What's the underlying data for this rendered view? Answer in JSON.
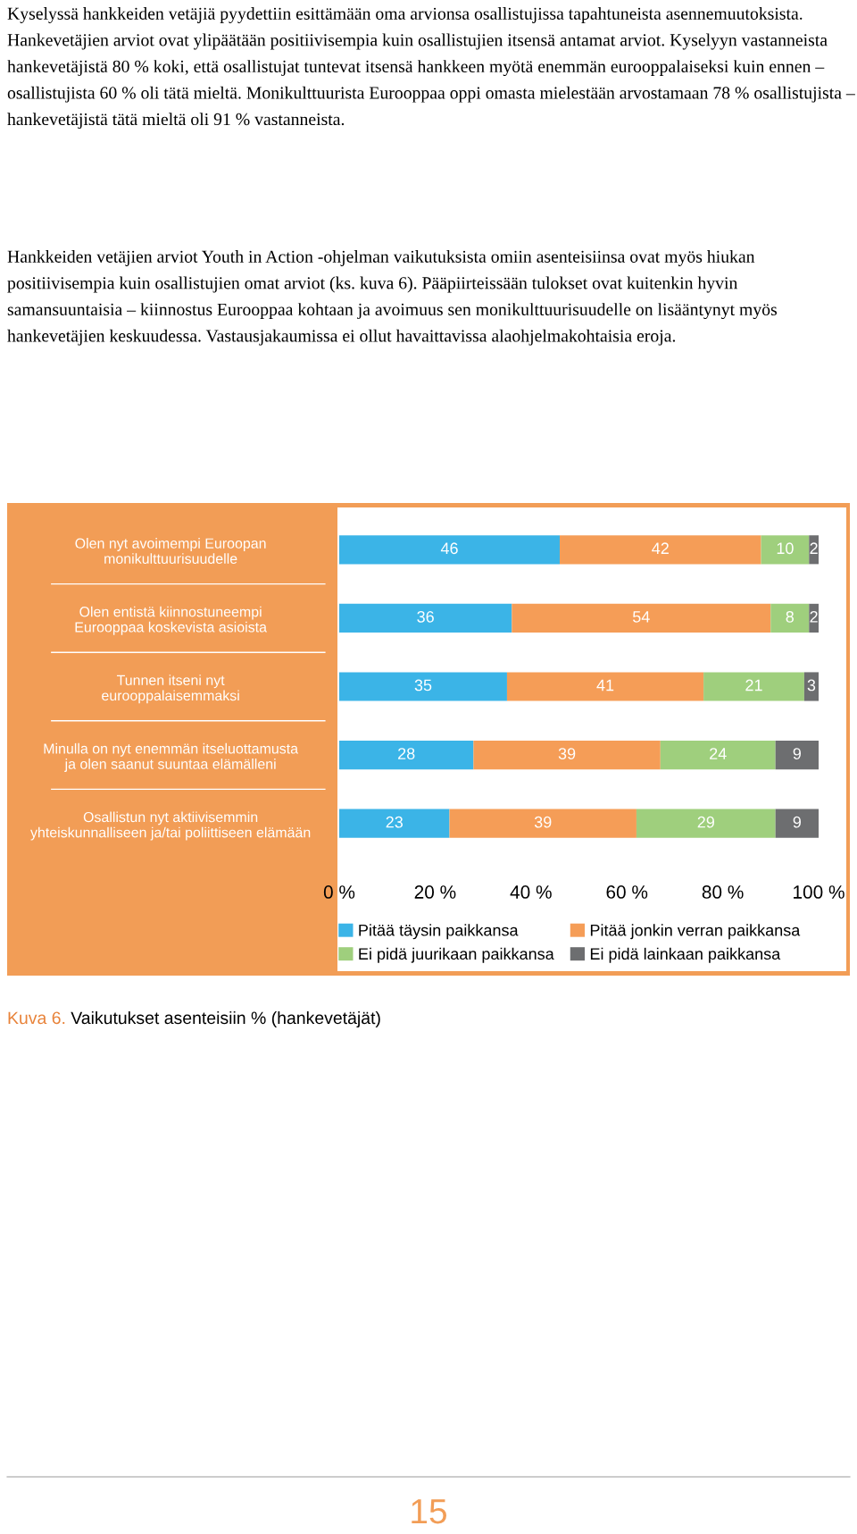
{
  "chart_data": {
    "type": "bar",
    "orientation": "horizontal",
    "stacked": true,
    "categories": [
      "Olen nyt avoimempi Euroopan\nmonikulttuurisuudelle",
      "Olen entistä kiinnostuneempi\nEurooppaa koskevista asioista",
      "Tunnen itseni nyt\neurooppalaisemmaksi",
      "Minulla on nyt enemmän itseluottamusta\nja olen saanut suuntaa elämälleni",
      "Osallistun nyt aktiivisemmin\nyhteiskunnalliseen ja/tai poliittiseen elämään"
    ],
    "series": [
      {
        "name": "Pitää täysin paikkansa",
        "color": "#3bb4e7",
        "values": [
          46,
          36,
          35,
          28,
          23
        ]
      },
      {
        "name": "Pitää jonkin verran paikkansa",
        "color": "#f59d57",
        "values": [
          42,
          54,
          41,
          39,
          39
        ]
      },
      {
        "name": "Ei pidä juurikaan paikkansa",
        "color": "#9fcf7d",
        "values": [
          10,
          8,
          21,
          24,
          29
        ]
      },
      {
        "name": "Ei pidä lainkaan paikkansa",
        "color": "#6d6e70",
        "values": [
          2,
          2,
          3,
          9,
          9
        ]
      }
    ],
    "xlim": [
      0,
      100
    ],
    "xticks": [
      {
        "value": 0,
        "label": "0 %"
      },
      {
        "value": 20,
        "label": "20 %"
      },
      {
        "value": 40,
        "label": "40 %"
      },
      {
        "value": 60,
        "label": "60 %"
      },
      {
        "value": 80,
        "label": "80 %"
      },
      {
        "value": 100,
        "label": "100 %"
      }
    ],
    "data_labels": true,
    "legend": "bottom",
    "grid": false,
    "annotations": [
      "Kyselyssä hankkeiden vetäjiä pyydettiin esittämään oma arvionsa osallistujissa tapahtuneista asennemuutoksista. Hankevetäjien arviot ovat ylipäätään positiivisempia kuin osallistujien itsensä antamat arviot. Kyselyyn vastanneista hankevetäjistä 80 % koki, että osallistujat tuntevat itsensä hankkeen myötä enemmän eurooppalaiseksi kuin ennen – osallistujista 60 % oli tätä mieltä. Monikulttuurista Eurooppaa oppi omasta mielestään arvostamaan 78 % osallistujista – hankevetäjistä tätä mieltä oli 91 % vastanneista.",
      "Hankkeiden vetäjien arviot Youth in Action -ohjelman vaikutuksista omiin asenteisiinsa ovat myös hiukan positiivisempia kuin osallistujien omat arviot (ks. kuva 6). Pääpiirteissään tulokset ovat kuitenkin hyvin samansuuntaisia – kiinnostus Eurooppaa kohtaan ja avoimuus sen monikulttuurisuudelle on lisääntynyt myös hankevetäjien keskuudessa. Vastausjakaumissa ei ollut havaittavissa alaohjelmakohtaisia eroja.",
      "Kuva 6.",
      "Vaikutukset asenteisiin % (hankevetäjät)",
      "15"
    ]
  }
}
